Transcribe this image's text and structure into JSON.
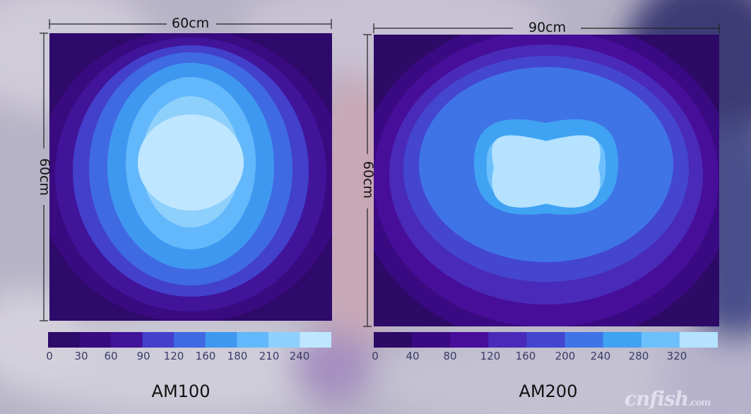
{
  "watermark": "cnfish.com",
  "palette": {
    "AM100": [
      "#2e0a6a",
      "#3a0a80",
      "#41149a",
      "#4340cc",
      "#3f6ae2",
      "#3f98f0",
      "#62b8fa",
      "#8ed0fc",
      "#bfe6ff"
    ],
    "AM200": [
      "#2c0a66",
      "#3a0a82",
      "#470e9a",
      "#4a2ab8",
      "#4446d0",
      "#3f74e6",
      "#40a2f2",
      "#6cc0fb",
      "#b4e2ff"
    ]
  },
  "chart_data": [
    {
      "type": "heatmap",
      "title": "AM100",
      "xlabel": "60cm",
      "ylabel": "60cm",
      "scale_ticks": [
        0,
        30,
        60,
        90,
        120,
        160,
        180,
        210,
        240
      ],
      "colorbar_labels": [
        "0",
        "30",
        "60",
        "90",
        "120",
        "160",
        "180",
        "210",
        "240"
      ],
      "grid": false
    },
    {
      "type": "heatmap",
      "title": "AM200",
      "xlabel": "90cm",
      "ylabel": "60cm",
      "scale_ticks": [
        0,
        40,
        80,
        120,
        160,
        200,
        240,
        280,
        320
      ],
      "colorbar_labels": [
        "0",
        "40",
        "80",
        "120",
        "160",
        "200",
        "240",
        "280",
        "320"
      ],
      "grid": false
    }
  ]
}
